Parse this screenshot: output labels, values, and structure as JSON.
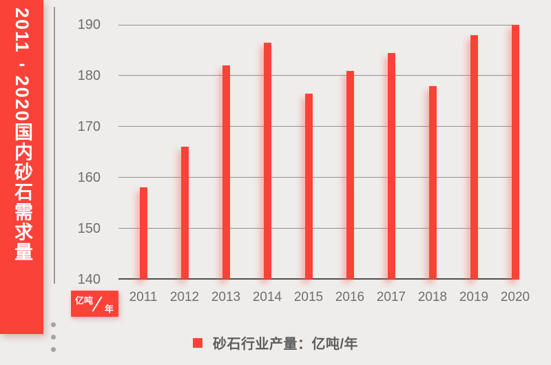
{
  "banner": {
    "title": "2011-2020国内砂石需求量"
  },
  "axis_unit_badge": {
    "numerator": "亿吨",
    "denominator": "年"
  },
  "legend": {
    "label": "砂石行业产量：亿吨/年"
  },
  "decor": {
    "dot_count": 3
  },
  "colors": {
    "accent_red": "#fb4238",
    "background": "#efedeb",
    "gridline": "#8f8f8f",
    "axis_baseline": "#4f4f4f",
    "label_gray": "#6e6e6e"
  },
  "chart_data": {
    "type": "bar",
    "title": "2011-2020国内砂石需求量",
    "categories": [
      "2011",
      "2012",
      "2013",
      "2014",
      "2015",
      "2016",
      "2017",
      "2018",
      "2019",
      "2020"
    ],
    "series": [
      {
        "name": "砂石行业产量",
        "unit": "亿吨/年",
        "values": [
          158,
          166,
          182,
          186.5,
          176.5,
          181,
          184.5,
          178,
          188,
          190
        ]
      }
    ],
    "ylabel": "亿吨/年",
    "ylim": [
      140,
      190
    ],
    "yticks": [
      140,
      150,
      160,
      170,
      180,
      190
    ],
    "grid": true,
    "legend_position": "bottom",
    "bar_color": "#fb4238"
  }
}
